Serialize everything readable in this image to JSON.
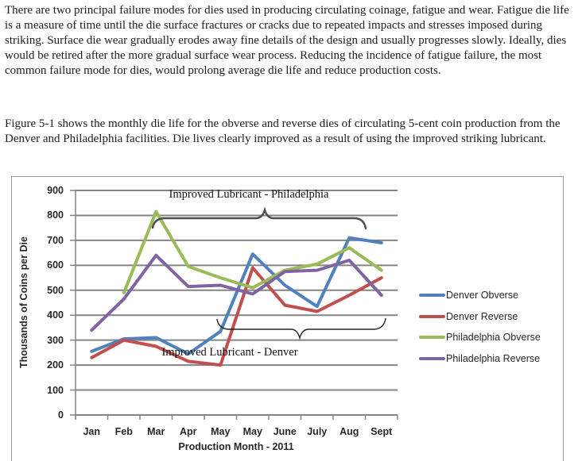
{
  "document": {
    "paragraph1": "There are two principal failure modes for dies used in producing circulating coinage, fatigue and wear.  Fatigue die life is a measure of time until the die surface fractures or cracks due to repeated impacts and stresses imposed during striking.  Surface die wear gradually erodes away fine details of the design and usually progresses slowly.  Ideally, dies would be retired after the more gradual surface wear process.  Reducing the incidence of fatigue failure, the most common failure mode for dies, would prolong average die life and reduce production costs.",
    "paragraph2": "Figure 5-1 shows the monthly die life for the obverse and reverse dies of circulating 5-cent coin production from the Denver and Philadelphia facilities.  Die lives clearly improved as a result of using the improved striking lubricant."
  },
  "chart_data": {
    "type": "line",
    "title": "",
    "xlabel": "Production Month - 2011",
    "ylabel": "Thousands of Coins per Die",
    "ylim": [
      0,
      900
    ],
    "yticks": [
      0,
      100,
      200,
      300,
      400,
      500,
      600,
      700,
      800,
      900
    ],
    "grid": true,
    "legend_position": "right",
    "categories": [
      "Jan",
      "Feb",
      "Mar",
      "Apr",
      "May",
      "May",
      "June",
      "July",
      "Aug",
      "Sept"
    ],
    "series": [
      {
        "name": "Denver Obverse",
        "color": "#4F81BD",
        "values": [
          255,
          305,
          310,
          245,
          335,
          645,
          520,
          435,
          710,
          690
        ]
      },
      {
        "name": "Denver Reverse",
        "color": "#C0504D",
        "values": [
          230,
          300,
          275,
          215,
          200,
          590,
          440,
          415,
          480,
          550
        ]
      },
      {
        "name": "Philadelphia Obverse",
        "color": "#9BBB59",
        "values": [
          null,
          490,
          815,
          595,
          550,
          510,
          580,
          605,
          670,
          580
        ]
      },
      {
        "name": "Philadelphia Reverse",
        "color": "#8064A2",
        "values": [
          340,
          465,
          640,
          515,
          520,
          485,
          575,
          580,
          620,
          480
        ]
      }
    ],
    "annotations": [
      {
        "id": "philadelphia",
        "text": "Improved Lubricant - Philadelphia"
      },
      {
        "id": "denver",
        "text": "Improved Lubricant - Denver"
      }
    ],
    "colors": {
      "gridline": "#848484",
      "axis": "#848484",
      "tick_label": "#262626"
    }
  }
}
